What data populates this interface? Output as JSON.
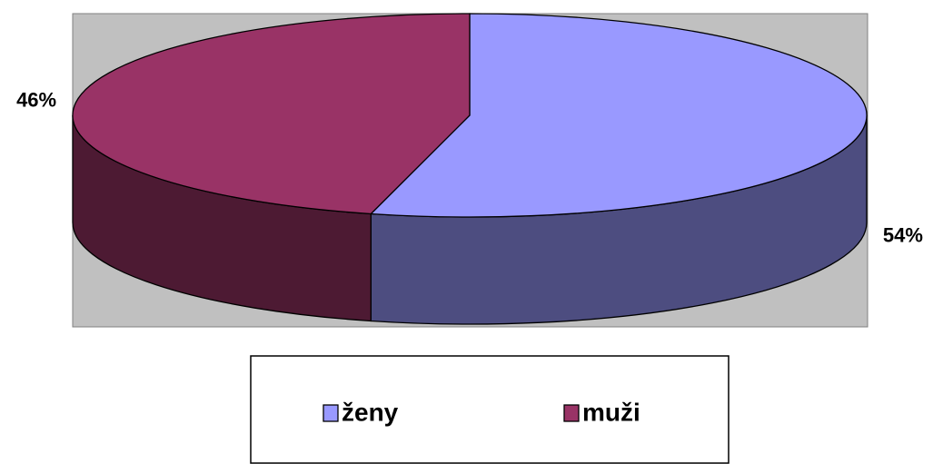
{
  "chart_data": {
    "type": "pie",
    "style": "3d",
    "categories": [
      "ženy",
      "muži"
    ],
    "values": [
      54,
      46
    ],
    "value_labels": [
      "54%",
      "46%"
    ],
    "colors": [
      "#9999ff",
      "#993366"
    ],
    "legend": "bottom"
  }
}
